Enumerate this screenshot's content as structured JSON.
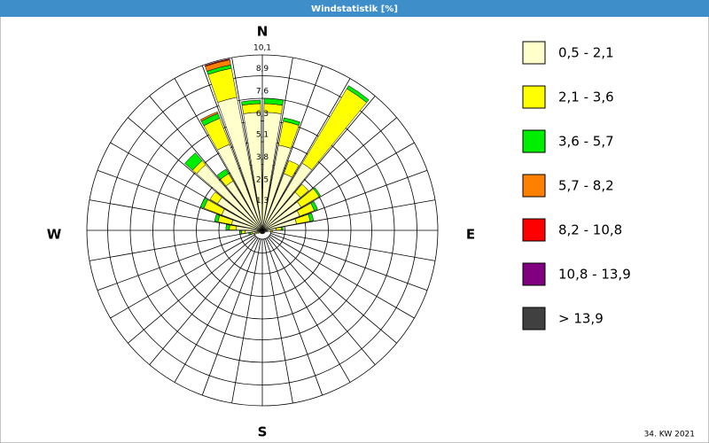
{
  "chart_data": {
    "type": "windrose",
    "title": "Windstatistik [%]",
    "footnote": "34. KW 2021",
    "compass": {
      "N": "N",
      "E": "E",
      "S": "S",
      "W": "W"
    },
    "x": [
      5,
      15,
      25,
      35,
      45,
      55,
      65,
      75,
      85,
      95,
      105,
      115,
      125,
      135,
      145,
      155,
      165,
      175,
      185,
      195,
      205,
      215,
      225,
      235,
      245,
      255,
      265,
      275,
      285,
      295,
      305,
      315,
      325,
      335,
      345,
      355
    ],
    "ylim": [
      0,
      10.1
    ],
    "yticks": [
      {
        "value": 1.3,
        "label": "1,3"
      },
      {
        "value": 2.5,
        "label": "2,5"
      },
      {
        "value": 3.8,
        "label": "3,8"
      },
      {
        "value": 5.1,
        "label": "5,1"
      },
      {
        "value": 6.3,
        "label": "6,3"
      },
      {
        "value": 7.6,
        "label": "7,6"
      },
      {
        "value": 8.9,
        "label": "8,9"
      },
      {
        "value": 10.1,
        "label": "10,1"
      }
    ],
    "series": [
      {
        "name": "0,5 - 2,1",
        "color": "#ffffcc",
        "values": [
          6.8,
          5.0,
          3.5,
          4.5,
          2.9,
          2.6,
          2.3,
          2.0,
          0.8,
          0.5,
          0.3,
          0.2,
          0.2,
          0.2,
          0.2,
          0.2,
          0.2,
          0.2,
          0.2,
          0.2,
          0.2,
          0.2,
          0.2,
          0.3,
          0.4,
          0.6,
          1.0,
          1.5,
          1.8,
          2.5,
          3.0,
          5.0,
          3.3,
          5.3,
          7.8,
          6.8
        ]
      },
      {
        "name": "2,1 - 3,6",
        "color": "#ffff00",
        "values": [
          0.5,
          1.4,
          0.8,
          5.0,
          0.6,
          1.2,
          0.9,
          0.8,
          0.3,
          0.1,
          0,
          0,
          0,
          0,
          0,
          0,
          0,
          0,
          0,
          0,
          0,
          0,
          0,
          0,
          0.1,
          0.1,
          0.2,
          0.4,
          0.8,
          1.1,
          0.5,
          0.3,
          0.5,
          1.6,
          1.7,
          0.5
        ]
      },
      {
        "name": "3,6 - 5,7",
        "color": "#00ee00",
        "values": [
          0.3,
          0.2,
          0,
          0.2,
          0,
          0.1,
          0.2,
          0.2,
          0.1,
          0,
          0,
          0,
          0,
          0,
          0,
          0,
          0,
          0,
          0,
          0,
          0,
          0,
          0,
          0,
          0,
          0.1,
          0.1,
          0.2,
          0.2,
          0.2,
          0,
          0.6,
          0.3,
          0.3,
          0.2,
          0.2
        ]
      },
      {
        "name": "5,7 - 8,2",
        "color": "#ff8000",
        "values": [
          0,
          0,
          0,
          0,
          0,
          0,
          0,
          0,
          0,
          0,
          0,
          0,
          0,
          0,
          0,
          0,
          0,
          0,
          0,
          0,
          0,
          0,
          0,
          0,
          0,
          0,
          0,
          0,
          0,
          0,
          0,
          0,
          0,
          0.1,
          0.3,
          0
        ]
      },
      {
        "name": "8,2 - 10,8",
        "color": "#ff0000",
        "values": [
          0,
          0,
          0,
          0,
          0,
          0,
          0,
          0,
          0,
          0,
          0,
          0,
          0,
          0,
          0,
          0,
          0,
          0,
          0,
          0,
          0,
          0,
          0,
          0,
          0,
          0,
          0,
          0,
          0,
          0,
          0,
          0,
          0,
          0,
          0.05,
          0
        ]
      },
      {
        "name": "10,8 - 13,9",
        "color": "#800080",
        "values": [
          0,
          0,
          0,
          0,
          0,
          0,
          0,
          0,
          0,
          0,
          0,
          0,
          0,
          0,
          0,
          0,
          0,
          0,
          0,
          0,
          0,
          0,
          0,
          0,
          0,
          0,
          0,
          0,
          0,
          0,
          0,
          0,
          0,
          0,
          0,
          0
        ]
      },
      {
        "name": " > 13,9",
        "color": "#404040",
        "values": [
          0,
          0,
          0,
          0,
          0,
          0,
          0,
          0,
          0,
          0,
          0,
          0,
          0,
          0,
          0,
          0,
          0,
          0,
          0,
          0,
          0,
          0,
          0,
          0,
          0,
          0,
          0,
          0,
          0,
          0,
          0,
          0,
          0,
          0,
          0,
          0
        ]
      }
    ]
  }
}
